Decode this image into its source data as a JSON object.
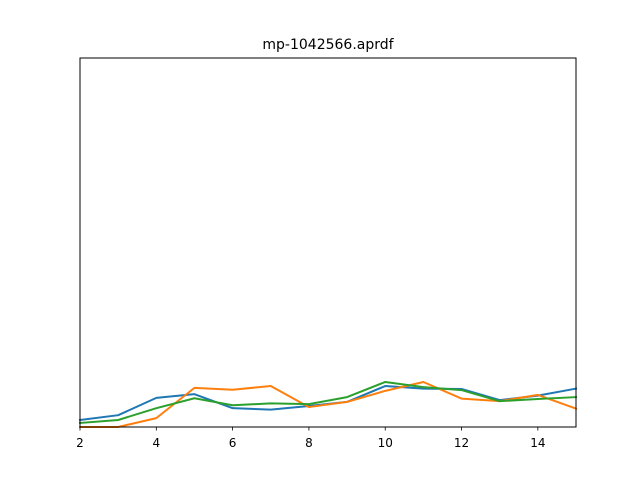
{
  "chart_data": {
    "type": "line",
    "title": "mp-1042566.aprdf",
    "xlabel": "",
    "ylabel": "",
    "xlim": [
      2,
      15
    ],
    "ylim": [
      0,
      1
    ],
    "x_ticks": [
      "2",
      "4",
      "6",
      "8",
      "10",
      "12",
      "14"
    ],
    "show_y_ticks": false,
    "grid": false,
    "legend": "none",
    "x": [
      2,
      3,
      4,
      5,
      6,
      7,
      8,
      9,
      10,
      11,
      12,
      13,
      14,
      15
    ],
    "series": [
      {
        "color": "#1f77b4",
        "values": [
          0.019,
          0.032,
          0.079,
          0.089,
          0.051,
          0.047,
          0.057,
          0.068,
          0.111,
          0.104,
          0.103,
          0.073,
          0.085,
          0.104
        ]
      },
      {
        "color": "#ff7f0e",
        "values": [
          0.0,
          0.0,
          0.024,
          0.106,
          0.101,
          0.111,
          0.054,
          0.068,
          0.098,
          0.122,
          0.077,
          0.07,
          0.087,
          0.05
        ]
      },
      {
        "color": "#2ca02c",
        "values": [
          0.011,
          0.019,
          0.051,
          0.078,
          0.059,
          0.064,
          0.062,
          0.081,
          0.122,
          0.108,
          0.1,
          0.07,
          0.076,
          0.081
        ]
      }
    ]
  }
}
